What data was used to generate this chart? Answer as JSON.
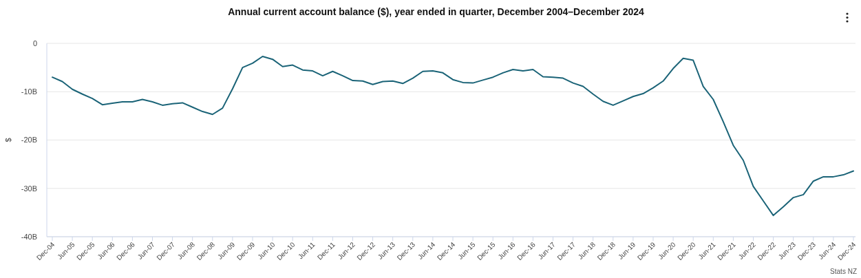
{
  "chart_data": {
    "type": "line",
    "title": "Annual current account balance ($), year ended in quarter, December 2004–December 2024",
    "ylabel": "$",
    "annotations": [
      "Stats NZ"
    ],
    "categories": [
      "Dec-04",
      null,
      "Jun-05",
      null,
      "Dec-05",
      null,
      "Jun-06",
      null,
      "Dec-06",
      null,
      "Jun-07",
      null,
      "Dec-07",
      null,
      "Jun-08",
      null,
      "Dec-08",
      null,
      "Jun-09",
      null,
      "Dec-09",
      null,
      "Jun-10",
      null,
      "Dec-10",
      null,
      "Jun-11",
      null,
      "Dec-11",
      null,
      "Jun-12",
      null,
      "Dec-12",
      null,
      "Jun-13",
      null,
      "Dec-13",
      null,
      "Jun-14",
      null,
      "Dec-14",
      null,
      "Jun-15",
      null,
      "Dec-15",
      null,
      "Jun-16",
      null,
      "Dec-16",
      null,
      "Jun-17",
      null,
      "Dec-17",
      null,
      "Jun-18",
      null,
      "Dec-18",
      null,
      "Jun-19",
      null,
      "Dec-19",
      null,
      "Jun-20",
      null,
      "Dec-20",
      null,
      "Jun-21",
      null,
      "Dec-21",
      null,
      "Jun-22",
      null,
      "Dec-22",
      null,
      "Jun-23",
      null,
      "Dec-23",
      null,
      "Jun-24",
      null,
      "Dec-24"
    ],
    "series": [
      {
        "color": "#1a6377",
        "values": [
          -7.0,
          -7.9,
          -9.5,
          -10.5,
          -11.4,
          -12.7,
          -12.4,
          -12.1,
          -12.1,
          -11.6,
          -12.1,
          -12.8,
          -12.5,
          -12.3,
          -13.2,
          -14.1,
          -14.7,
          -13.4,
          -9.4,
          -5.0,
          -4.1,
          -2.7,
          -3.3,
          -4.8,
          -4.5,
          -5.5,
          -5.7,
          -6.7,
          -5.8,
          -6.7,
          -7.7,
          -7.8,
          -8.5,
          -7.9,
          -7.8,
          -8.3,
          -7.2,
          -5.8,
          -5.7,
          -6.1,
          -7.5,
          -8.1,
          -8.2,
          -7.6,
          -7.0,
          -6.1,
          -5.4,
          -5.7,
          -5.4,
          -6.9,
          -7.0,
          -7.2,
          -8.2,
          -8.9,
          -10.5,
          -12.0,
          -12.8,
          -11.9,
          -11.0,
          -10.4,
          -9.2,
          -7.8,
          -5.2,
          -3.1,
          -3.5,
          -8.9,
          -11.6,
          -16.2,
          -21.1,
          -24.2,
          -29.6,
          -32.6,
          -35.6,
          -33.8,
          -31.9,
          -31.3,
          -28.5,
          -27.6,
          -27.6,
          -27.2,
          -26.4
        ]
      }
    ],
    "ylim": [
      -40,
      0
    ],
    "yticks": [
      0,
      {
        "value": -10,
        "label": "-10B"
      },
      {
        "value": -20,
        "label": "-20B"
      },
      {
        "value": -30,
        "label": "-30B"
      },
      {
        "value": -40,
        "label": "-40B"
      }
    ],
    "grid": "y",
    "marker": "none",
    "line_style": "solid"
  }
}
